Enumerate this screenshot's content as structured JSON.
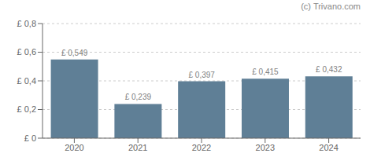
{
  "chart_data": {
    "type": "bar",
    "categories": [
      "2020",
      "2021",
      "2022",
      "2023",
      "2024"
    ],
    "values": [
      0.549,
      0.239,
      0.397,
      0.415,
      0.432
    ],
    "value_labels": [
      "£ 0,549",
      "£ 0,239",
      "£ 0,397",
      "£ 0,415",
      "£ 0,432"
    ],
    "data_labels": true,
    "color": "#5f7f96",
    "ylim": [
      0,
      0.8
    ],
    "yticks": [
      {
        "value": 0,
        "label": "£ 0"
      },
      {
        "value": 0.2,
        "label": "£ 0,2"
      },
      {
        "value": 0.4,
        "label": "£ 0,4"
      },
      {
        "value": 0.6,
        "label": "£ 0,6"
      },
      {
        "value": 0.8,
        "label": "£ 0,8"
      }
    ],
    "grid": true,
    "annotations": [
      "(c) Trivano.com"
    ]
  }
}
